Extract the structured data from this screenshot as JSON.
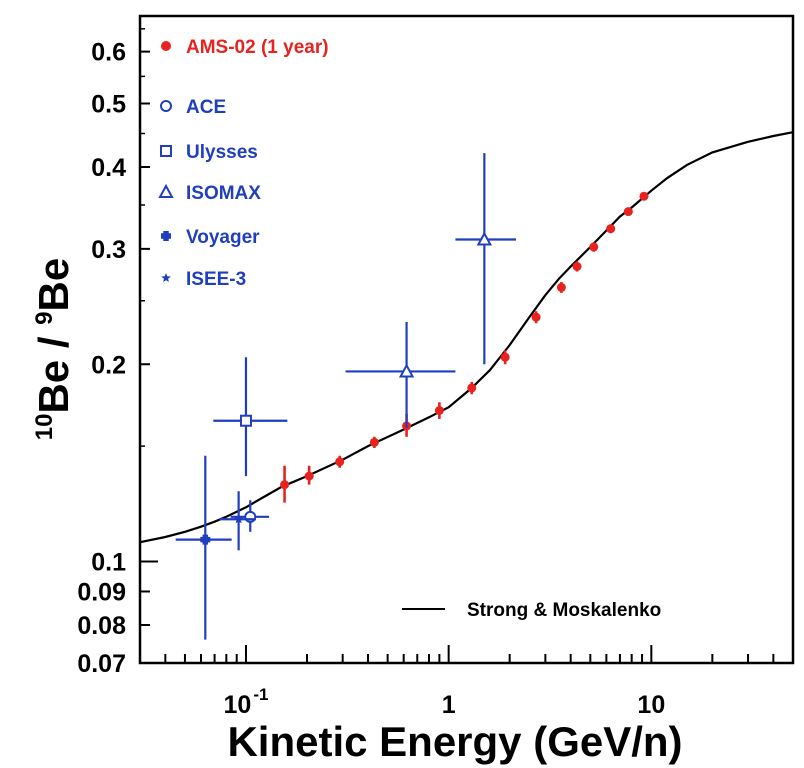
{
  "chart_data": {
    "type": "scatter",
    "title": "",
    "xlabel": "Kinetic Energy (GeV/n)",
    "ylabel": {
      "pre": "10",
      "be1": "Be",
      "slash": " / ",
      "sup": "9",
      "be2": "Be"
    },
    "x_scale": "log",
    "y_scale": "log",
    "xlim": [
      0.03,
      50
    ],
    "ylim": [
      0.07,
      0.68
    ],
    "x_ticks": [
      {
        "value": 0.1,
        "base": "10",
        "exp": "-1"
      },
      {
        "value": 1,
        "base": "1",
        "exp": ""
      },
      {
        "value": 10,
        "base": "10",
        "exp": ""
      }
    ],
    "y_ticks": [
      {
        "value": 0.6,
        "label": "0.6"
      },
      {
        "value": 0.5,
        "label": "0.5"
      },
      {
        "value": 0.4,
        "label": "0.4"
      },
      {
        "value": 0.3,
        "label": "0.3"
      },
      {
        "value": 0.2,
        "label": "0.2"
      },
      {
        "value": 0.1,
        "label": "0.1"
      },
      {
        "value": 0.09,
        "label": "0.09"
      },
      {
        "value": 0.08,
        "label": "0.08"
      },
      {
        "value": 0.07,
        "label": "0.07"
      }
    ],
    "series": [
      {
        "name": "AMS-02 (1 year)",
        "marker": "filled-circle",
        "color": "#e8231f",
        "points": [
          {
            "x": 0.155,
            "y": 0.131,
            "yerr": [
              0.123,
              0.14
            ]
          },
          {
            "x": 0.205,
            "y": 0.135,
            "yerr": [
              0.131,
              0.14
            ]
          },
          {
            "x": 0.29,
            "y": 0.142,
            "yerr": [
              0.139,
              0.145
            ]
          },
          {
            "x": 0.43,
            "y": 0.152,
            "yerr": [
              0.149,
              0.155
            ]
          },
          {
            "x": 0.62,
            "y": 0.161,
            "yerr": [
              0.155,
              0.168
            ]
          },
          {
            "x": 0.9,
            "y": 0.17,
            "yerr": [
              0.165,
              0.175
            ]
          },
          {
            "x": 1.3,
            "y": 0.184,
            "yerr": [
              0.18,
              0.188
            ]
          },
          {
            "x": 1.9,
            "y": 0.205,
            "yerr": [
              0.2,
              0.21
            ]
          },
          {
            "x": 2.7,
            "y": 0.236,
            "yerr": [
              0.231,
              0.241
            ]
          },
          {
            "x": 3.6,
            "y": 0.262,
            "yerr": [
              0.257,
              0.267
            ]
          },
          {
            "x": 4.3,
            "y": 0.282,
            "yerr": [
              0.277,
              0.287
            ]
          },
          {
            "x": 5.2,
            "y": 0.302,
            "yerr": [
              0.297,
              0.307
            ]
          },
          {
            "x": 6.3,
            "y": 0.322,
            "yerr": [
              0.317,
              0.327
            ]
          },
          {
            "x": 7.7,
            "y": 0.342,
            "yerr": [
              0.337,
              0.347
            ]
          },
          {
            "x": 9.2,
            "y": 0.361,
            "yerr": [
              0.356,
              0.366
            ]
          }
        ]
      },
      {
        "name": "ACE",
        "marker": "open-circle",
        "color": "#1f3fbf",
        "points": [
          {
            "x": 0.105,
            "y": 0.117,
            "xerr": [
              0.084,
              0.13
            ],
            "yerr": [
              0.111,
              0.124
            ]
          }
        ]
      },
      {
        "name": "Ulysses",
        "marker": "open-square",
        "color": "#1f3fbf",
        "points": [
          {
            "x": 0.1,
            "y": 0.164,
            "xerr": [
              0.069,
              0.16
            ],
            "yerr": [
              0.135,
              0.205
            ]
          }
        ]
      },
      {
        "name": "ISOMAX",
        "marker": "open-triangle",
        "color": "#1f3fbf",
        "points": [
          {
            "x": 0.62,
            "y": 0.195,
            "xerr": [
              0.31,
              1.08
            ],
            "yerr": [
              0.16,
              0.232
            ]
          },
          {
            "x": 1.5,
            "y": 0.31,
            "xerr": [
              1.08,
              2.15
            ],
            "yerr": [
              0.2,
              0.42
            ]
          }
        ]
      },
      {
        "name": "Voyager",
        "marker": "filled-cross",
        "color": "#1f3fbf",
        "points": [
          {
            "x": 0.063,
            "y": 0.108,
            "xerr": [
              0.045,
              0.085
            ],
            "yerr": [
              0.076,
              0.145
            ]
          }
        ]
      },
      {
        "name": "ISEE-3",
        "marker": "star",
        "color": "#1f3fbf",
        "points": [
          {
            "x": 0.092,
            "y": 0.116,
            "xerr": [
              0.074,
              0.112
            ],
            "yerr": [
              0.104,
              0.128
            ]
          }
        ]
      }
    ],
    "model_curve": {
      "name": "Strong & Moskalenko",
      "color": "#000000",
      "x": [
        0.03,
        0.04,
        0.05,
        0.06,
        0.07,
        0.08,
        0.1,
        0.12,
        0.15,
        0.2,
        0.3,
        0.4,
        0.6,
        0.8,
        1.0,
        1.3,
        1.6,
        2.0,
        2.5,
        3.0,
        3.5,
        4.0,
        5.0,
        6.0,
        7.0,
        8.0,
        10.0,
        12.0,
        15.0,
        20.0,
        30.0,
        40.0,
        50.0
      ],
      "y": [
        0.107,
        0.109,
        0.111,
        0.113,
        0.115,
        0.117,
        0.121,
        0.125,
        0.13,
        0.135,
        0.143,
        0.15,
        0.159,
        0.166,
        0.172,
        0.184,
        0.196,
        0.214,
        0.236,
        0.255,
        0.27,
        0.282,
        0.302,
        0.32,
        0.336,
        0.347,
        0.368,
        0.385,
        0.403,
        0.421,
        0.437,
        0.446,
        0.452
      ]
    },
    "legend_position": "top-left",
    "model_legend_position": "bottom-right",
    "grid": false
  }
}
